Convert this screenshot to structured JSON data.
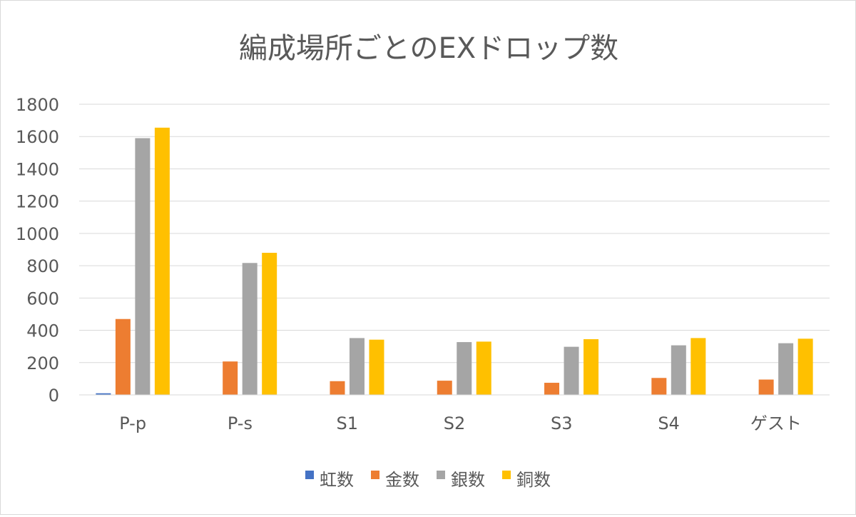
{
  "chart_data": {
    "type": "bar",
    "title": "編成場所ごとのEXドロップ数",
    "categories": [
      "P-p",
      "P-s",
      "S1",
      "S2",
      "S3",
      "S4",
      "ゲスト"
    ],
    "series": [
      {
        "name": "虹数",
        "color": "#4472C4",
        "values": [
          10,
          0,
          0,
          0,
          0,
          0,
          0
        ]
      },
      {
        "name": "金数",
        "color": "#ED7D31",
        "values": [
          470,
          207,
          85,
          88,
          75,
          105,
          95
        ]
      },
      {
        "name": "銀数",
        "color": "#A5A5A5",
        "values": [
          1590,
          817,
          352,
          327,
          298,
          307,
          320
        ]
      },
      {
        "name": "銅数",
        "color": "#FFC000",
        "values": [
          1655,
          880,
          342,
          330,
          345,
          352,
          348
        ]
      }
    ],
    "ylim": [
      0,
      1800
    ],
    "yticks": [
      0,
      200,
      400,
      600,
      800,
      1000,
      1200,
      1400,
      1600,
      1800
    ],
    "grid": true,
    "legend": "bottom",
    "xlabel": "",
    "ylabel": ""
  }
}
